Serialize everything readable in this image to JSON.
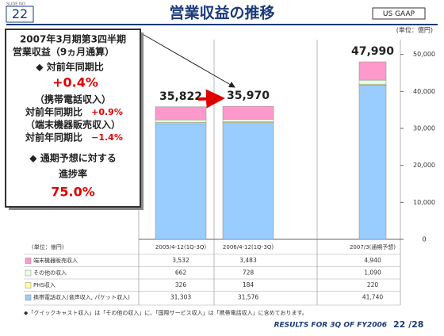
{
  "header": {
    "slide_no_label": "SLIDE NO.",
    "slide_no": "22",
    "title": "営業収益の推移",
    "badge": "US GAAP"
  },
  "chart_data": {
    "type": "stacked-bar",
    "unit": "(単位：億円)",
    "categories": [
      "2005/4-12(1Q-3Q)",
      "2006/4-12(1Q-3Q)",
      "2007/3(通期予想)"
    ],
    "series": [
      {
        "name": "携帯電話収入(音声収入, パケット収入)",
        "color": "#99ccff",
        "values": [
          31303,
          31576,
          41740
        ],
        "value_labels": [
          "31,303",
          "31,576",
          "41,740"
        ]
      },
      {
        "name": "PHS収入",
        "color": "#ffff99",
        "values": [
          326,
          184,
          220
        ]
      },
      {
        "name": "その他の収入",
        "color": "#e6ffe6",
        "values": [
          662,
          728,
          1090
        ],
        "value_labels": [
          "662",
          "728",
          "1,090"
        ]
      },
      {
        "name": "端末機器販売収入",
        "color": "#ff99cc",
        "values": [
          3532,
          3483,
          4940
        ],
        "value_labels": [
          "3,532",
          "3,483",
          "4,940"
        ]
      }
    ],
    "totals": [
      35822,
      35970,
      47990
    ],
    "total_labels": [
      "35,822",
      "35,970",
      "47,990"
    ],
    "ylim": [
      0,
      54000
    ],
    "yticks": [
      0,
      {
        "value": 10000,
        "label": "10,000"
      },
      {
        "value": 20000,
        "label": "20,000"
      },
      {
        "value": 30000,
        "label": "30,000"
      },
      {
        "value": 40000,
        "label": "40,000"
      },
      {
        "value": 50000,
        "label": "50,000"
      }
    ],
    "grid": false
  },
  "callout": {
    "line1": "2007年3月期第3四半期",
    "line2": "営業収益（9ヵ月通算）",
    "line3": "◆ 対前年同期比",
    "value1": "+0.4%",
    "line4": "（携帯電話収入）",
    "line5": "対前年同期比",
    "value2": "+0.9%",
    "line6": "（端末機器販売収入）",
    "line7": "対前年同期比",
    "value3": "−1.4%",
    "line8": "◆ 通期予想に対する",
    "line9": "進捗率",
    "value4": "75.0%"
  },
  "note": "◆「クイックキャスト収入」は「その他の収入」に、「国際サービス収入」は「携帯電話収入」に含めております。",
  "footer": {
    "text": "RESULTS FOR 3Q OF FY2006",
    "page": "22 /28"
  }
}
